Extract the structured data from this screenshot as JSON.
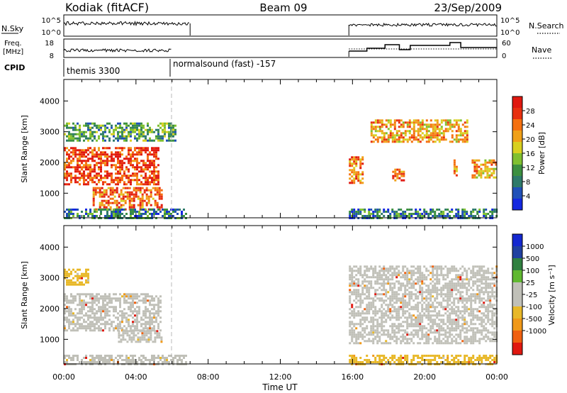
{
  "header": {
    "station": "Kodiak (fitACF)",
    "beam": "Beam 09",
    "date": "23/Sep/2009"
  },
  "strips": {
    "nsky": {
      "label": "N.Sky",
      "ticks": [
        "10^5",
        "10^0"
      ]
    },
    "nsearch": {
      "label": "N.Search",
      "ticks": [
        "10^5",
        "10^0"
      ]
    },
    "freq": {
      "label_line1": "Freq.",
      "label_line2": "[MHz]",
      "ticks": [
        "18",
        "8"
      ]
    },
    "nave": {
      "label": "Nave",
      "ticks": [
        "60",
        "0"
      ]
    },
    "cpid": {
      "label": "CPID",
      "mode1": "themis 3300",
      "mode2": "normalsound (fast) -157"
    }
  },
  "x_ticks": [
    "00:00",
    "04:00",
    "08:00",
    "12:00",
    "16:00",
    "20:00",
    "00:00"
  ],
  "x_label": "Time UT",
  "y_label": "Slant Range [km]",
  "y_ticks": [
    "4000",
    "3000",
    "2000",
    "1000"
  ],
  "colors": {
    "power": [
      "#1428e0",
      "#2050b8",
      "#2e7a6a",
      "#3c9040",
      "#80c030",
      "#d8d020",
      "#f0a018",
      "#f57010",
      "#e83010",
      "#e01810"
    ],
    "velocity": [
      "#e01810",
      "#f06010",
      "#f09818",
      "#e8b828",
      "#c0c0b8",
      "#c0c0b8",
      "#60b830",
      "#308040",
      "#2040a0",
      "#1428d0"
    ],
    "gray": "#c0c0b8"
  },
  "colorbars": {
    "power": {
      "label": "Power [dB]",
      "ticks": [
        "28",
        "24",
        "20",
        "16",
        "12",
        "8",
        "4"
      ]
    },
    "velocity": {
      "label": "Velocity [m s⁻¹]",
      "ticks": [
        "1000",
        "500",
        "100",
        "25",
        "-25",
        "-100",
        "-500",
        "-1000"
      ]
    }
  },
  "chart_data": {
    "type": "heatmap",
    "title": "Kodiak (fitACF)",
    "subtitle": "Beam 09",
    "date": "23/Sep/2009",
    "xlabel": "Time UT",
    "ylabel": "Slant Range [km]",
    "xlim_hours": [
      0,
      24
    ],
    "ylim_km": [
      200,
      4700
    ],
    "panels": [
      {
        "quantity": "Power [dB]",
        "colorbar_ticks": [
          4,
          8,
          12,
          16,
          20,
          24,
          28
        ],
        "echo_regions": [
          {
            "t0": 0.0,
            "t1": 6.2,
            "r0": 2700,
            "r1": 3300,
            "level": 3
          },
          {
            "t0": 0.0,
            "t1": 5.2,
            "r0": 1300,
            "r1": 2500,
            "level": 8
          },
          {
            "t0": 1.6,
            "t1": 5.4,
            "r0": 500,
            "r1": 1200,
            "level": 7
          },
          {
            "t0": 0.0,
            "t1": 6.8,
            "r0": 200,
            "r1": 500,
            "level": 2
          },
          {
            "t0": 15.8,
            "t1": 16.6,
            "r0": 1300,
            "r1": 2200,
            "level": 7
          },
          {
            "t0": 17.0,
            "t1": 22.4,
            "r0": 2700,
            "r1": 3400,
            "level": 6
          },
          {
            "t0": 18.2,
            "t1": 18.8,
            "r0": 1400,
            "r1": 1800,
            "level": 7
          },
          {
            "t0": 21.6,
            "t1": 21.8,
            "r0": 1600,
            "r1": 2100,
            "level": 6
          },
          {
            "t0": 22.6,
            "t1": 24.0,
            "r0": 1500,
            "r1": 2100,
            "level": 6
          },
          {
            "t0": 15.8,
            "t1": 24.0,
            "r0": 200,
            "r1": 500,
            "level": 2
          }
        ]
      },
      {
        "quantity": "Velocity [m s⁻¹]",
        "colorbar_ticks": [
          -1000,
          -500,
          -100,
          -25,
          25,
          100,
          500,
          1000
        ],
        "echo_regions": [
          {
            "t0": 0.0,
            "t1": 1.4,
            "r0": 2800,
            "r1": 3300,
            "velocity": -200
          },
          {
            "t0": 0.0,
            "t1": 5.4,
            "r0": 1300,
            "r1": 2500,
            "velocity": 0
          },
          {
            "t0": 3.0,
            "t1": 5.4,
            "r0": 900,
            "r1": 1300,
            "velocity": 0
          },
          {
            "t0": 0.0,
            "t1": 6.8,
            "r0": 200,
            "r1": 500,
            "velocity": 0
          },
          {
            "t0": 15.8,
            "t1": 24.0,
            "r0": 900,
            "r1": 3400,
            "velocity": 0
          },
          {
            "t0": 15.8,
            "t1": 24.0,
            "r0": 200,
            "r1": 500,
            "velocity": -150
          }
        ]
      }
    ],
    "cpid_segments": [
      {
        "t0": 0.0,
        "t1": 6.0,
        "name": "themis 3300"
      },
      {
        "t0": 6.0,
        "t1": 24.0,
        "name": "normalsound (fast) -157"
      }
    ]
  }
}
